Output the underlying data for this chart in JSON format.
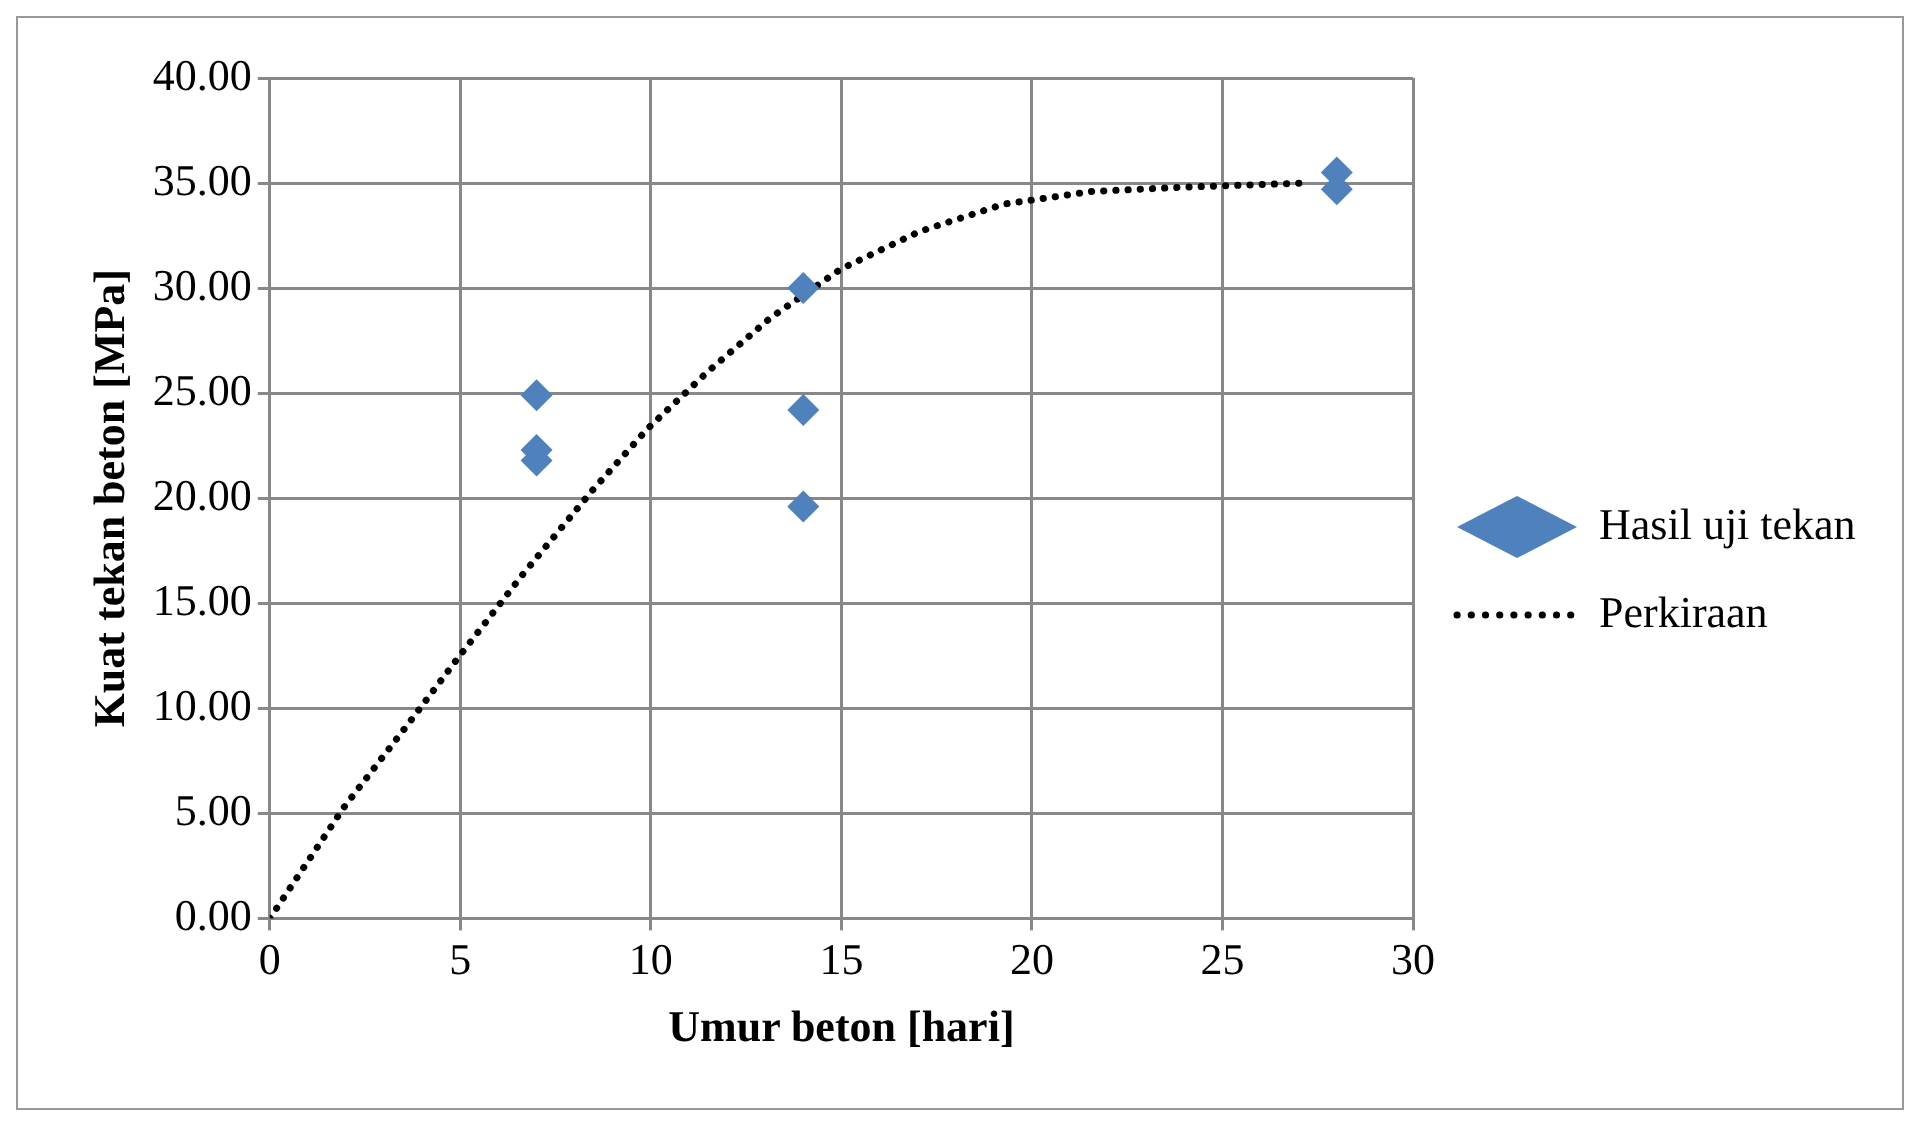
{
  "chart_data": {
    "type": "scatter",
    "xlabel": "Umur beton [hari]",
    "ylabel": "Kuat tekan beton [MPa]",
    "series": [
      {
        "name": "Hasil uji tekan",
        "type": "scatter",
        "color": "#4f81bd",
        "marker": "diamond",
        "x": [
          7,
          7,
          7,
          14,
          14,
          14,
          28,
          28
        ],
        "values": [
          24.9,
          22.3,
          21.8,
          30.0,
          24.2,
          19.6,
          35.5,
          34.7
        ]
      },
      {
        "name": "Perkiraan",
        "type": "line",
        "color": "#000000",
        "marker": "none",
        "line_style": "dotted",
        "x": [
          0,
          1.95,
          3.65,
          4.94,
          6.65,
          8.48,
          9.91,
          11.48,
          13.15,
          14.98,
          17.06,
          19.27,
          21.57,
          23.93,
          27.15
        ],
        "values": [
          0,
          5.3,
          9.3,
          12.4,
          16.4,
          20.4,
          23.3,
          26.0,
          28.6,
          30.9,
          32.7,
          34.0,
          34.6,
          34.8,
          35.0
        ]
      }
    ],
    "xlim": [
      0,
      30
    ],
    "xticks": [
      0,
      5,
      10,
      15,
      20,
      25,
      30
    ],
    "ylim": [
      0,
      40
    ],
    "yticks": [
      {
        "value": 0,
        "label": "0.00"
      },
      {
        "value": 5,
        "label": "5.00"
      },
      {
        "value": 10,
        "label": "10.00"
      },
      {
        "value": 15,
        "label": "15.00"
      },
      {
        "value": 20,
        "label": "20.00"
      },
      {
        "value": 25,
        "label": "25.00"
      },
      {
        "value": 30,
        "label": "30.00"
      },
      {
        "value": 35,
        "label": "35.00"
      },
      {
        "value": 40,
        "label": "40.00"
      }
    ],
    "grid": true,
    "legend": "right"
  }
}
